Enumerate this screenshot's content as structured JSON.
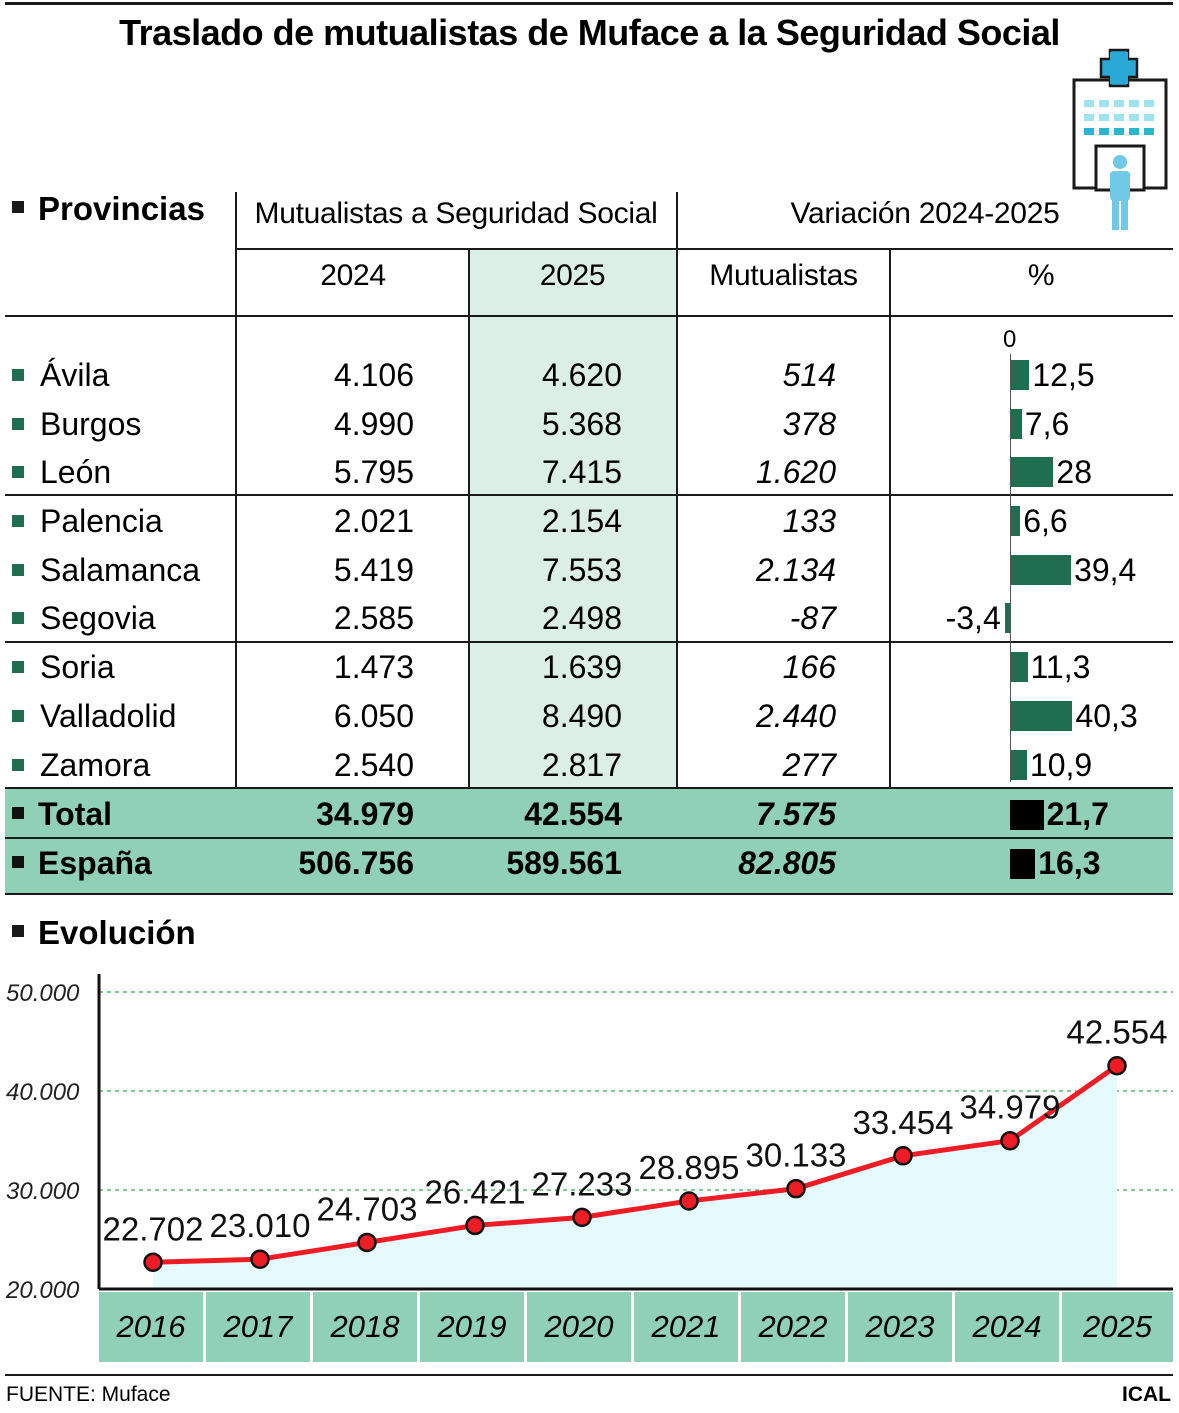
{
  "title": "Traslado de mutualistas de Muface a la Seguridad Social",
  "table": {
    "provincias_label": "Provincias",
    "group_header": "Mutualistas a Seguridad Social",
    "variation_header": "Variación 2024-2025",
    "col_2024": "2024",
    "col_2025": "2025",
    "col_mut": "Mutualistas",
    "col_pct": "%",
    "zero_label": "0",
    "rows": [
      {
        "name": "Ávila",
        "v2024": "4.106",
        "v2025": "4.620",
        "mut": "514",
        "pct_label": "12,5",
        "pct": 12.5
      },
      {
        "name": "Burgos",
        "v2024": "4.990",
        "v2025": "5.368",
        "mut": "378",
        "pct_label": "7,6",
        "pct": 7.6
      },
      {
        "name": "León",
        "v2024": "5.795",
        "v2025": "7.415",
        "mut": "1.620",
        "pct_label": "28",
        "pct": 28
      },
      {
        "name": "Palencia",
        "v2024": "2.021",
        "v2025": "2.154",
        "mut": "133",
        "pct_label": "6,6",
        "pct": 6.6
      },
      {
        "name": "Salamanca",
        "v2024": "5.419",
        "v2025": "7.553",
        "mut": "2.134",
        "pct_label": "39,4",
        "pct": 39.4
      },
      {
        "name": "Segovia",
        "v2024": "2.585",
        "v2025": "2.498",
        "mut": "-87",
        "pct_label": "-3,4",
        "pct": -3.4
      },
      {
        "name": "Soria",
        "v2024": "1.473",
        "v2025": "1.639",
        "mut": "166",
        "pct_label": "11,3",
        "pct": 11.3
      },
      {
        "name": "Valladolid",
        "v2024": "6.050",
        "v2025": "8.490",
        "mut": "2.440",
        "pct_label": "40,3",
        "pct": 40.3
      },
      {
        "name": "Zamora",
        "v2024": "2.540",
        "v2025": "2.817",
        "mut": "277",
        "pct_label": "10,9",
        "pct": 10.9
      }
    ],
    "totals": [
      {
        "name": "Total",
        "v2024": "34.979",
        "v2025": "42.554",
        "mut": "7.575",
        "pct_label": "21,7",
        "pct": 21.7
      },
      {
        "name": "España",
        "v2024": "506.756",
        "v2025": "589.561",
        "mut": "82.805",
        "pct_label": "16,3",
        "pct": 16.3
      }
    ]
  },
  "colors": {
    "bar": "#1e6e4f",
    "total_bar": "#000000",
    "highlight_col": "#dcefe6",
    "total_bg": "#8fd0b7",
    "line": "#ee1c24",
    "area": "#e6fbfd",
    "grid": "#3aa856"
  },
  "evolution_label": "Evolución",
  "chart_data": {
    "type": "line",
    "x": [
      "2016",
      "2017",
      "2018",
      "2019",
      "2020",
      "2021",
      "2022",
      "2023",
      "2024",
      "2025"
    ],
    "series": [
      {
        "values": [
          22702,
          23010,
          24703,
          26421,
          27233,
          28895,
          30133,
          33454,
          34979,
          42554
        ]
      }
    ],
    "value_labels": [
      "22.702",
      "23.010",
      "24.703",
      "26.421",
      "27.233",
      "28.895",
      "30.133",
      "33.454",
      "34.979",
      "42.554"
    ],
    "ylim": [
      20000,
      50000
    ],
    "yticks": [
      20000,
      30000,
      40000,
      50000
    ],
    "ytick_labels": [
      "20.000",
      "30.000",
      "40.000",
      "50.000"
    ],
    "grid": true,
    "area_fill": true
  },
  "footer": {
    "source": "FUENTE: Muface",
    "brand": "ICAL"
  }
}
